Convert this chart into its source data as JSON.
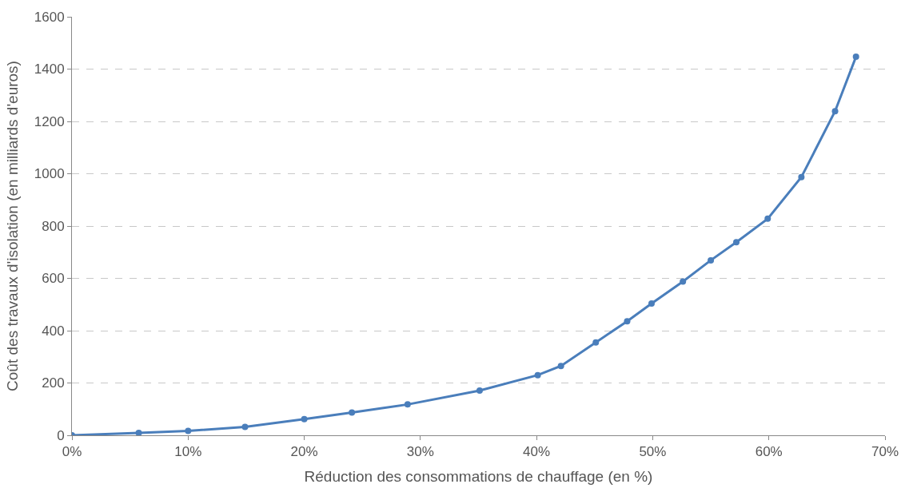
{
  "chart_data": {
    "type": "line",
    "xlabel": "Réduction des consommations de chauffage (en %)",
    "ylabel": "Coût des travaux d'isolation (en milliards d'euros)",
    "x": [
      0,
      5.75,
      10,
      14.9,
      20,
      24.1,
      28.9,
      35.1,
      40.1,
      42.1,
      45.1,
      47.8,
      49.9,
      52.6,
      55,
      57.2,
      59.9,
      62.8,
      65.7,
      67.5
    ],
    "series": [
      {
        "color": "#4a7ebb",
        "values": [
          0,
          9,
          17,
          32,
          62,
          87,
          118,
          171,
          230,
          265,
          355,
          436,
          504,
          588,
          669,
          738,
          828,
          987,
          1239,
          1447
        ]
      }
    ],
    "xlim": [
      0,
      70
    ],
    "xticks": [
      {
        "value": 0,
        "label": "0%"
      },
      {
        "value": 10,
        "label": "10%"
      },
      {
        "value": 20,
        "label": "20%"
      },
      {
        "value": 30,
        "label": "30%"
      },
      {
        "value": 40,
        "label": "40%"
      },
      {
        "value": 50,
        "label": "50%"
      },
      {
        "value": 60,
        "label": "60%"
      },
      {
        "value": 70,
        "label": "70%"
      }
    ],
    "ylim": [
      0,
      1600
    ],
    "yticks": [
      0,
      200,
      400,
      600,
      800,
      1000,
      1200,
      1400,
      1600
    ],
    "grid": "y",
    "legend": false,
    "marker": "circle",
    "line_style": "solid"
  }
}
